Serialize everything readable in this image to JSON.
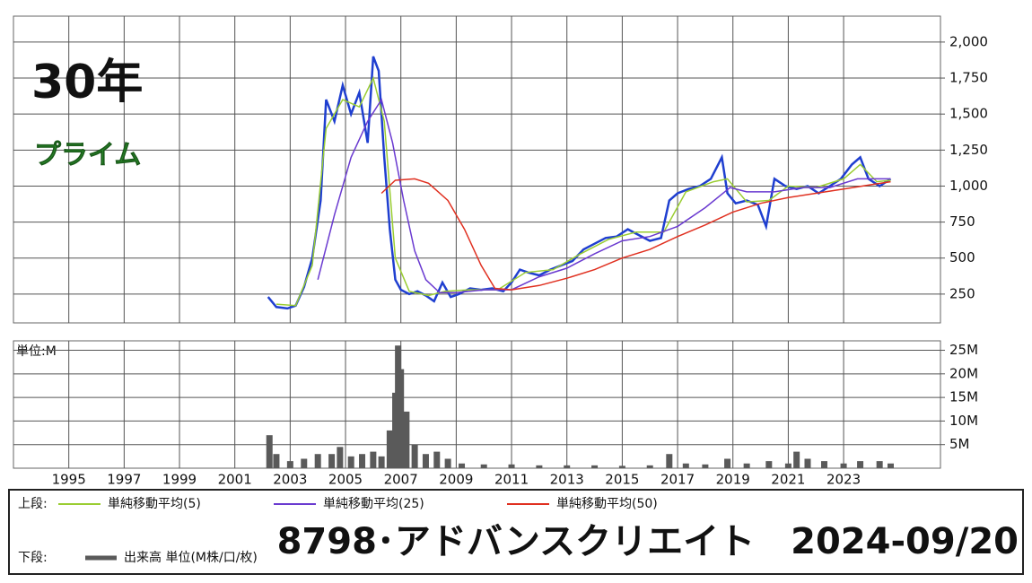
{
  "chart_data": [
    {
      "type": "line",
      "period_label": "30年",
      "market_label": "プライム",
      "xlim": [
        1993,
        2026.5
      ],
      "xticks": [
        1995,
        1997,
        1999,
        2001,
        2003,
        2005,
        2007,
        2009,
        2011,
        2013,
        2015,
        2017,
        2019,
        2021,
        2023
      ],
      "ylim": [
        50,
        2180
      ],
      "yticks": [
        250,
        500,
        750,
        {
          "value": 1000,
          "label": "1,000"
        },
        {
          "value": 1250,
          "label": "1,250"
        },
        {
          "value": 1500,
          "label": "1,500"
        },
        {
          "value": 1750,
          "label": "1,750"
        },
        {
          "value": 2000,
          "label": "2,000"
        }
      ],
      "grid": true,
      "series": [
        {
          "color": "#1f3fd0",
          "x": [
            2002.2,
            2002.5,
            2002.9,
            2003.2,
            2003.5,
            2003.8,
            2004.1,
            2004.3,
            2004.6,
            2004.9,
            2005.2,
            2005.5,
            2005.8,
            2006.0,
            2006.2,
            2006.4,
            2006.6,
            2006.8,
            2007.0,
            2007.3,
            2007.6,
            2007.9,
            2008.2,
            2008.5,
            2008.8,
            2009.1,
            2009.5,
            2009.9,
            2010.3,
            2010.7,
            2011.0,
            2011.3,
            2011.6,
            2012.0,
            2012.4,
            2012.8,
            2013.2,
            2013.6,
            2014.0,
            2014.4,
            2014.8,
            2015.2,
            2015.6,
            2016.0,
            2016.4,
            2016.7,
            2017.0,
            2017.4,
            2017.8,
            2018.2,
            2018.6,
            2018.8,
            2019.1,
            2019.5,
            2019.9,
            2020.2,
            2020.5,
            2020.9,
            2021.3,
            2021.7,
            2022.1,
            2022.5,
            2022.9,
            2023.3,
            2023.6,
            2023.9,
            2024.3,
            2024.7
          ],
          "values": [
            230,
            160,
            150,
            170,
            300,
            500,
            900,
            1600,
            1450,
            1700,
            1500,
            1650,
            1300,
            1900,
            1800,
            1200,
            700,
            350,
            280,
            250,
            270,
            240,
            200,
            330,
            230,
            250,
            290,
            280,
            290,
            270,
            330,
            420,
            400,
            380,
            420,
            450,
            480,
            560,
            600,
            640,
            650,
            700,
            660,
            620,
            640,
            900,
            950,
            980,
            1000,
            1050,
            1200,
            950,
            880,
            900,
            870,
            720,
            1050,
            1000,
            980,
            1000,
            950,
            1000,
            1050,
            1150,
            1200,
            1050,
            1000,
            1050
          ]
        },
        {
          "name": "単純移動平均(5)",
          "color": "#9acd32",
          "x": [
            2002.5,
            2003.2,
            2003.8,
            2004.3,
            2004.9,
            2005.5,
            2006.0,
            2006.4,
            2006.8,
            2007.3,
            2008.0,
            2008.6,
            2009.5,
            2010.5,
            2011.5,
            2012.5,
            2013.5,
            2014.5,
            2015.5,
            2016.5,
            2017.3,
            2018.3,
            2018.8,
            2019.5,
            2020.3,
            2021.0,
            2022.0,
            2023.0,
            2023.6,
            2024.2,
            2024.7
          ],
          "values": [
            180,
            170,
            450,
            1400,
            1600,
            1550,
            1750,
            1450,
            500,
            270,
            240,
            270,
            280,
            280,
            400,
            420,
            530,
            630,
            680,
            680,
            960,
            1030,
            1050,
            890,
            900,
            1000,
            990,
            1050,
            1150,
            1030,
            1040
          ]
        },
        {
          "name": "単純移動平均(25)",
          "color": "#6a3ad0",
          "x": [
            2004.0,
            2004.6,
            2005.2,
            2005.8,
            2006.3,
            2006.7,
            2007.1,
            2007.5,
            2007.9,
            2008.4,
            2009.0,
            2010.0,
            2011.0,
            2012.0,
            2013.0,
            2014.0,
            2015.0,
            2016.0,
            2017.0,
            2018.0,
            2018.9,
            2019.5,
            2020.5,
            2021.5,
            2022.5,
            2023.5,
            2024.7
          ],
          "values": [
            350,
            800,
            1200,
            1450,
            1600,
            1300,
            900,
            550,
            350,
            260,
            260,
            280,
            280,
            370,
            430,
            530,
            620,
            650,
            720,
            850,
            990,
            960,
            960,
            990,
            990,
            1050,
            1050
          ]
        },
        {
          "name": "単純移動平均(50)",
          "color": "#e03020",
          "x": [
            2006.3,
            2006.8,
            2007.5,
            2008.0,
            2008.7,
            2009.3,
            2009.9,
            2010.4,
            2011.0,
            2012.0,
            2013.0,
            2014.0,
            2015.0,
            2016.0,
            2017.0,
            2018.0,
            2019.0,
            2020.0,
            2021.0,
            2022.0,
            2023.0,
            2024.0,
            2024.7
          ],
          "values": [
            950,
            1040,
            1050,
            1020,
            900,
            700,
            450,
            290,
            280,
            310,
            360,
            420,
            500,
            560,
            650,
            730,
            820,
            880,
            920,
            950,
            980,
            1010,
            1030
          ]
        }
      ]
    },
    {
      "type": "bar",
      "unit_label": "単位:M",
      "xlim": [
        1993,
        2026.5
      ],
      "xticks": [
        1995,
        1997,
        1999,
        2001,
        2003,
        2005,
        2007,
        2009,
        2011,
        2013,
        2015,
        2017,
        2019,
        2021,
        2023
      ],
      "ylim": [
        0,
        27
      ],
      "yticks": [
        {
          "value": 5,
          "label": "5M"
        },
        {
          "value": 10,
          "label": "10M"
        },
        {
          "value": 15,
          "label": "15M"
        },
        {
          "value": 20,
          "label": "20M"
        },
        {
          "value": 25,
          "label": "25M"
        }
      ],
      "grid": true,
      "series": [
        {
          "name": "出来高 単位(M株/口/枚)",
          "color": "#5a5a5a",
          "x": [
            2002.25,
            2002.5,
            2003.0,
            2003.5,
            2004.0,
            2004.5,
            2004.8,
            2005.2,
            2005.6,
            2006.0,
            2006.3,
            2006.6,
            2006.8,
            2006.9,
            2007.0,
            2007.2,
            2007.5,
            2007.9,
            2008.3,
            2008.7,
            2009.2,
            2010.0,
            2011.0,
            2012.0,
            2013.0,
            2014.0,
            2015.0,
            2016.0,
            2016.7,
            2017.3,
            2018.0,
            2018.8,
            2019.5,
            2020.3,
            2021.0,
            2021.3,
            2021.7,
            2022.3,
            2023.0,
            2023.6,
            2024.3,
            2024.7
          ],
          "values": [
            7,
            3,
            1.5,
            2,
            3,
            3,
            4.5,
            2.5,
            3,
            3.5,
            2.5,
            8,
            16,
            26,
            21,
            12,
            5,
            3,
            3.5,
            2,
            1,
            0.8,
            0.8,
            0.6,
            0.6,
            0.6,
            0.5,
            0.6,
            3,
            1,
            0.8,
            2,
            1,
            1.5,
            1,
            3.5,
            2,
            1.5,
            1,
            1.5,
            1.5,
            1
          ]
        }
      ]
    }
  ],
  "legend": {
    "upper_label": "上段:",
    "lower_label": "下段:"
  },
  "title": "8798･アドバンスクリエイト　2024-09/20"
}
